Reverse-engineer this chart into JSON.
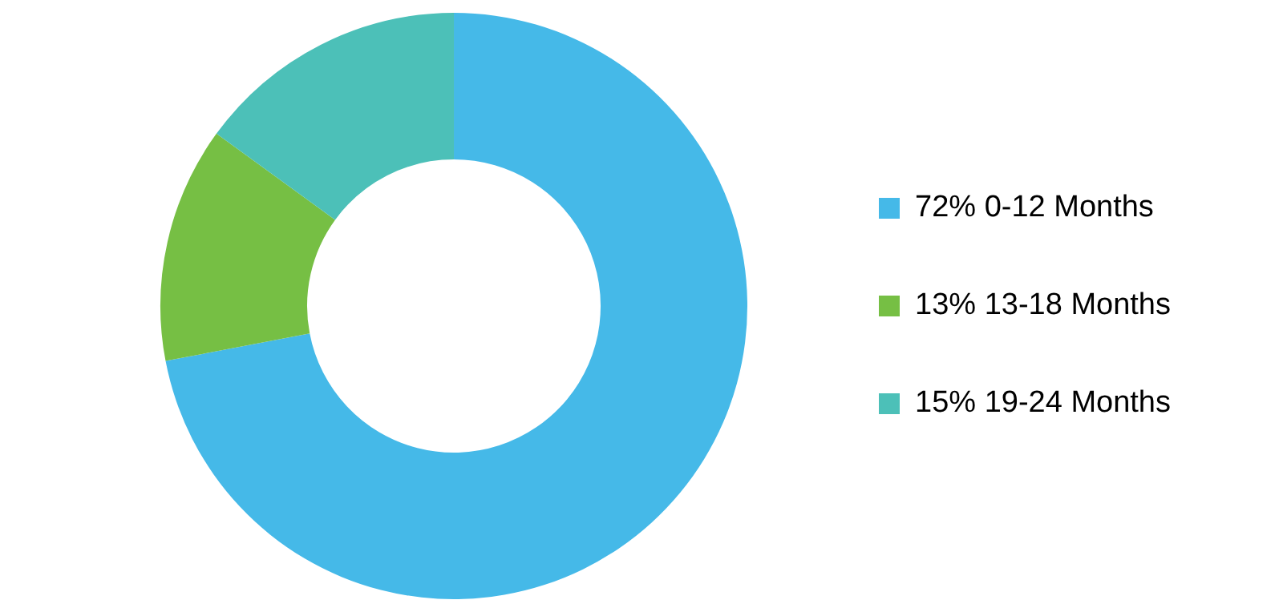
{
  "chart_data": {
    "type": "donut",
    "categories": [
      "0-12 Months",
      "13-18 Months",
      "19-24 Months"
    ],
    "values": [
      72,
      13,
      15
    ],
    "value_labels": [
      "72%",
      "13%",
      "15%"
    ],
    "colors": [
      "#45b9e8",
      "#76bf44",
      "#4cc0b8"
    ],
    "legend": "right"
  }
}
